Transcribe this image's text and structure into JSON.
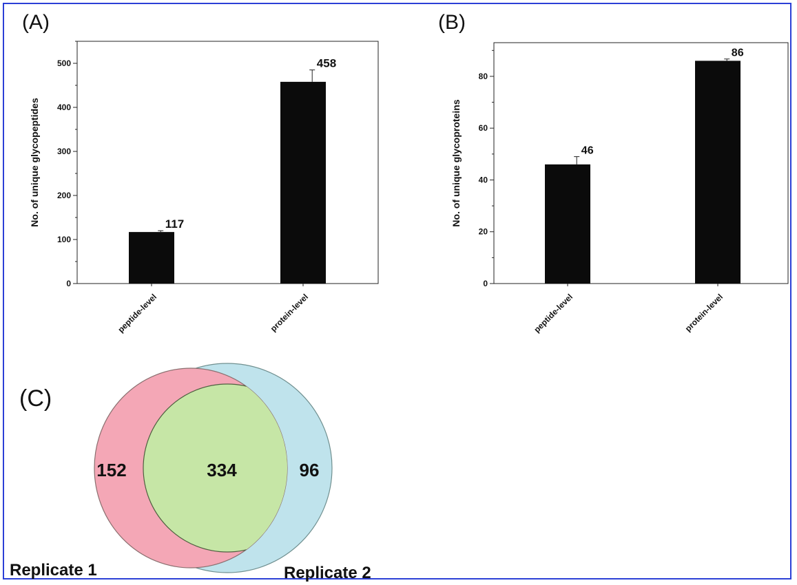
{
  "panels": {
    "a": "(A)",
    "b": "(B)",
    "c": "(C)"
  },
  "colors": {
    "bar": "#0b0b0b",
    "frame": "#2b3fd6",
    "set1": "#f4a7b6",
    "set2": "#bfe3ec",
    "overlap": "#c6e6a6"
  },
  "chart_data": [
    {
      "type": "bar",
      "panel": "(A)",
      "categories": [
        "peptide-level",
        "protein-level"
      ],
      "values": [
        117,
        458
      ],
      "error": [
        3,
        27
      ],
      "data_labels": [
        "117",
        "458"
      ],
      "ylabel": "No. of unique glycopeptides",
      "ylim": [
        0,
        550
      ],
      "yticks": [
        0,
        100,
        200,
        300,
        400,
        500
      ],
      "grid": false
    },
    {
      "type": "bar",
      "panel": "(B)",
      "categories": [
        "peptide-level",
        "protein-level"
      ],
      "values": [
        46,
        86
      ],
      "error": [
        3,
        0.7
      ],
      "data_labels": [
        "46",
        "86"
      ],
      "ylabel": "No. of unique glycoproteins",
      "ylim": [
        0,
        93
      ],
      "yticks": [
        0,
        20,
        40,
        60,
        80
      ],
      "grid": false
    }
  ],
  "venn": {
    "sets": [
      "Replicate 1",
      "Replicate 2"
    ],
    "only_1": "152",
    "overlap": "334",
    "only_2": "96"
  }
}
